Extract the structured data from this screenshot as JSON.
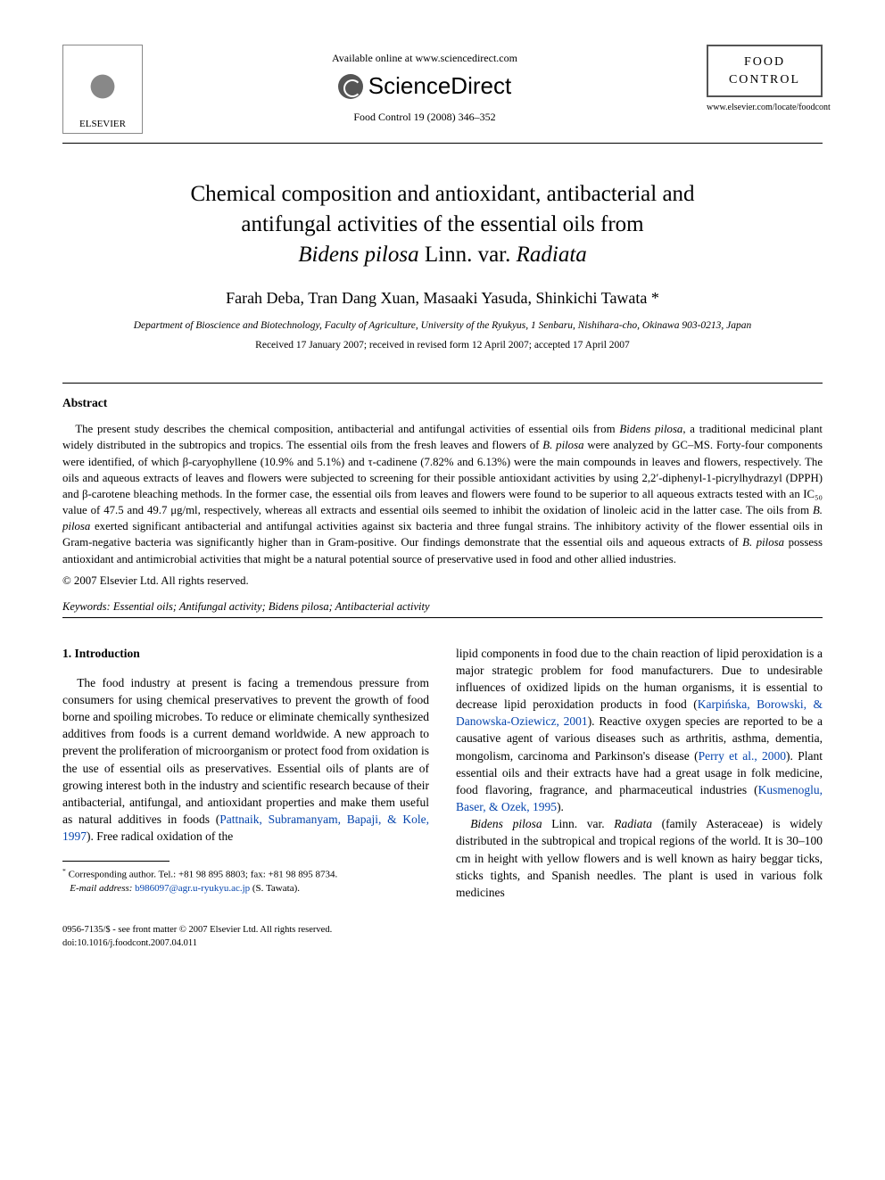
{
  "header": {
    "publisher_name": "ELSEVIER",
    "available_text": "Available online at www.sciencedirect.com",
    "sciencedirect_label": "ScienceDirect",
    "journal_reference": "Food Control 19 (2008) 346–352",
    "journal_name_line1": "FOOD",
    "journal_name_line2": "CONTROL",
    "journal_url": "www.elsevier.com/locate/foodcont"
  },
  "title": {
    "line1": "Chemical composition and antioxidant, antibacterial and",
    "line2": "antifungal activities of the essential oils from",
    "line3_italic1": "Bidens pilosa",
    "line3_plain": " Linn. var. ",
    "line3_italic2": "Radiata"
  },
  "authors": "Farah Deba, Tran Dang Xuan, Masaaki Yasuda, Shinkichi Tawata",
  "corresponding_mark": "*",
  "affiliation": "Department of Bioscience and Biotechnology, Faculty of Agriculture, University of the Ryukyus, 1 Senbaru, Nishihara-cho, Okinawa 903-0213, Japan",
  "dates": "Received 17 January 2007; received in revised form 12 April 2007; accepted 17 April 2007",
  "abstract": {
    "heading": "Abstract",
    "body_pre": "The present study describes the chemical composition, antibacterial and antifungal activities of essential oils from ",
    "body_it1": "Bidens pilosa",
    "body_mid1": ", a traditional medicinal plant widely distributed in the subtropics and tropics. The essential oils from the fresh leaves and flowers of ",
    "body_it2": "B. pilosa",
    "body_mid2": " were analyzed by GC–MS. Forty-four components were identified, of which β-caryophyllene (10.9% and 5.1%) and τ-cadinene (7.82% and 6.13%) were the main compounds in leaves and flowers, respectively. The oils and aqueous extracts of leaves and flowers were subjected to screening for their possible antioxidant activities by using 2,2′-diphenyl-1-picrylhydrazyl (DPPH) and β-carotene bleaching methods. In the former case, the essential oils from leaves and flowers were found to be superior to all aqueous extracts tested with an IC₅₀ value of 47.5 and 49.7 μg/ml, respectively, whereas all extracts and essential oils seemed to inhibit the oxidation of linoleic acid in the latter case. The oils from ",
    "body_it3": "B. pilosa",
    "body_mid3": " exerted significant antibacterial and antifungal activities against six bacteria and three fungal strains. The inhibitory activity of the flower essential oils in Gram-negative bacteria was significantly higher than in Gram-positive. Our findings demonstrate that the essential oils and aqueous extracts of ",
    "body_it4": "B. pilosa",
    "body_end": " possess antioxidant and antimicrobial activities that might be a natural potential source of preservative used in food and other allied industries.",
    "copyright": "© 2007 Elsevier Ltd. All rights reserved."
  },
  "keywords": {
    "label": "Keywords:",
    "text": " Essential oils; Antifungal activity; Bidens pilosa; Antibacterial activity"
  },
  "introduction": {
    "heading": "1. Introduction",
    "col1_p1_pre": "The food industry at present is facing a tremendous pressure from consumers for using chemical preservatives to prevent the growth of food borne and spoiling microbes. To reduce or eliminate chemically synthesized additives from foods is a current demand worldwide. A new approach to prevent the proliferation of microorganism or protect food from oxidation is the use of essential oils as preservatives. Essential oils of plants are of growing interest both in the industry and scientific research because of their antibacterial, antifungal, and antioxidant properties and make them useful as natural additives in foods (",
    "col1_p1_link": "Pattnaik, Subramanyam, Bapaji, & Kole, 1997",
    "col1_p1_post": "). Free radical oxidation of the",
    "col2_p1_pre": "lipid components in food due to the chain reaction of lipid peroxidation is a major strategic problem for food manufacturers. Due to undesirable influences of oxidized lipids on the human organisms, it is essential to decrease lipid peroxidation products in food (",
    "col2_p1_link1": "Karpińska, Borowski, & Danowska-Oziewicz, 2001",
    "col2_p1_mid1": "). Reactive oxygen species are reported to be a causative agent of various diseases such as arthritis, asthma, dementia, mongolism, carcinoma and Parkinson's disease (",
    "col2_p1_link2": "Perry et al., 2000",
    "col2_p1_mid2": "). Plant essential oils and their extracts have had a great usage in folk medicine, food flavoring, fragrance, and pharmaceutical industries (",
    "col2_p1_link3": "Kusmenoglu, Baser, & Ozek, 1995",
    "col2_p1_end": ").",
    "col2_p2_it1": "Bidens pilosa",
    "col2_p2_mid1": " Linn. var. ",
    "col2_p2_it2": "Radiata",
    "col2_p2_text": " (family Asteraceae) is widely distributed in the subtropical and tropical regions of the world. It is 30–100 cm in height with yellow flowers and is well known as hairy beggar ticks, sticks tights, and Spanish needles. The plant is used in various folk medicines"
  },
  "footnote": {
    "corr_label": "Corresponding author. Tel.: +81 98 895 8803; fax: +81 98 895 8734.",
    "email_label": "E-mail address:",
    "email": "b986097@agr.u-ryukyu.ac.jp",
    "email_name": "(S. Tawata)."
  },
  "bottom": {
    "line1": "0956-7135/$ - see front matter © 2007 Elsevier Ltd. All rights reserved.",
    "line2": "doi:10.1016/j.foodcont.2007.04.011"
  }
}
